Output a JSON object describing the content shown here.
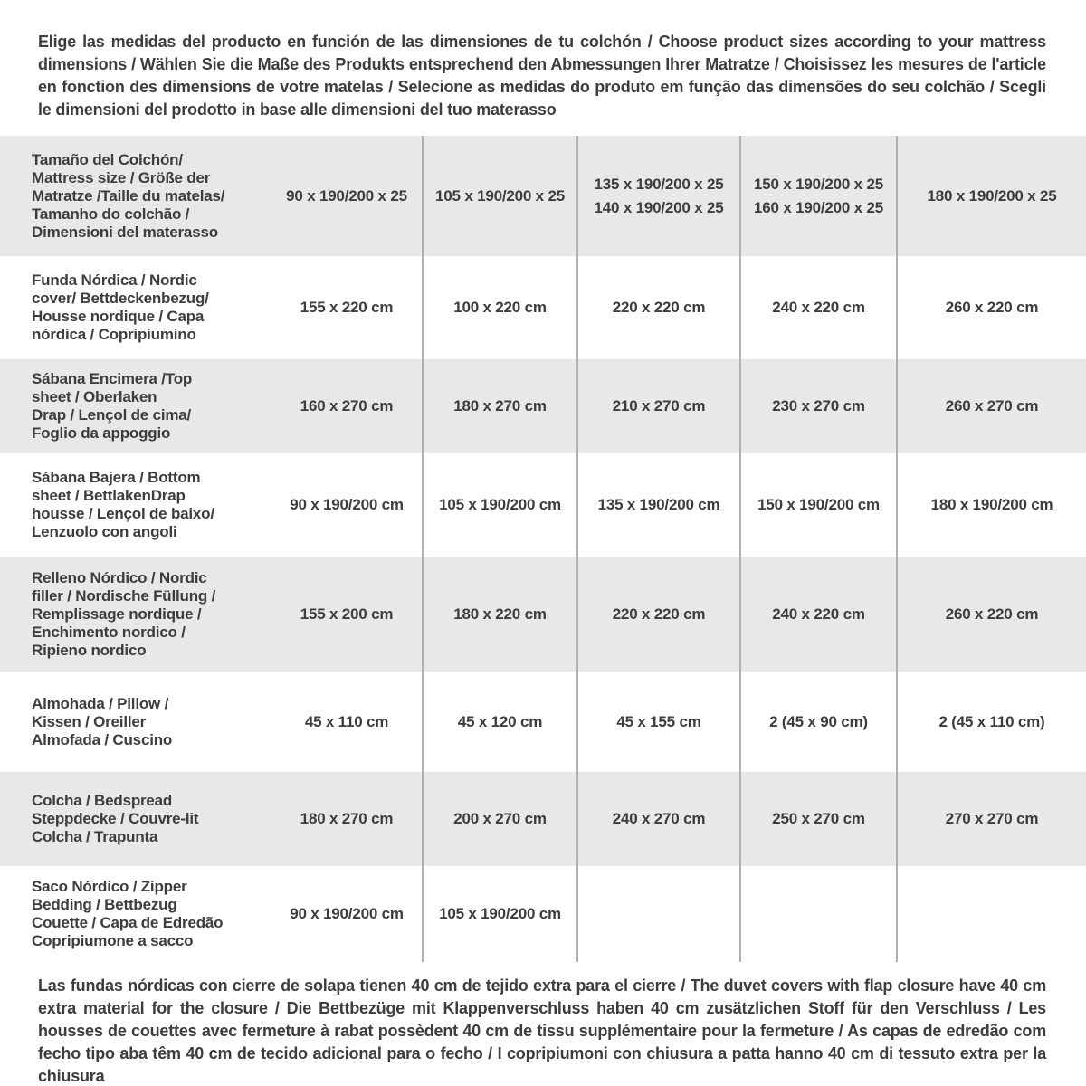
{
  "colors": {
    "row_gray": "#e8e8e8",
    "separator_line": "#b0b0b0",
    "text": "#3d3d3d"
  },
  "intro": "Elige las medidas del producto en función de las dimensiones de tu colchón / Choose product sizes according to your mattress dimensions / Wählen Sie die Maße des Produkts entsprechend den Abmessungen Ihrer Matratze / Choisissez les mesures de l'article en fonction des dimensions de votre matelas / Selecione as medidas do produto em função das dimensões do seu colchão / Scegli le dimensioni del prodotto in base alle dimensioni del tuo materasso",
  "footnote": "Las fundas nórdicas con cierre de solapa tienen 40 cm de tejido extra para el cierre / The duvet covers with flap closure have 40 cm extra material for the closure / Die Bettbezüge mit Klappenverschluss haben 40 cm zusätzlichen Stoff für den Verschluss / Les housses de couettes avec fermeture à rabat possèdent 40 cm de tissu supplémentaire pour la fermeture / As capas de edredão com fecho tipo aba têm 40 cm de tecido adicional para o fecho / I copripiumoni con chiusura a patta hanno 40 cm di tessuto extra per la chiusura",
  "table": {
    "rows": [
      {
        "label": "Tamaño del Colchón/\nMattress size / Größe der\nMatratze /Taille du matelas/\nTamanho do colchão /\nDimensioni del materasso",
        "values": [
          "90 x 190/200 x 25",
          "105 x 190/200 x 25",
          "135 x 190/200 x 25\n140 x 190/200 x 25",
          "150 x 190/200 x 25\n160 x 190/200 x 25",
          "180 x 190/200 x 25"
        ]
      },
      {
        "label": "Funda Nórdica /  Nordic\ncover/ Bettdeckenbezug/\nHousse nordique  / Capa\nnórdica / Copripiumino",
        "values": [
          "155 x 220 cm",
          "100 x 220 cm",
          "220 x 220 cm",
          "240 x 220 cm",
          "260 x 220 cm"
        ]
      },
      {
        "label": "Sábana Encimera /Top\nsheet / Oberlaken\nDrap / Lençol de cima/\nFoglio da appoggio",
        "values": [
          "160 x 270 cm",
          "180 x 270 cm",
          "210 x 270 cm",
          "230 x 270 cm",
          "260 x 270 cm"
        ]
      },
      {
        "label": "Sábana Bajera / Bottom\nsheet / BettlakenDrap\nhousse / Lençol de baixo/\nLenzuolo con angoli",
        "values": [
          "90 x 190/200 cm",
          "105 x 190/200 cm",
          "135 x 190/200 cm",
          "150 x 190/200 cm",
          "180 x 190/200 cm"
        ]
      },
      {
        "label": "Relleno Nórdico / Nordic\nfiller / Nordische Füllung /\nRemplissage nordique /\nEnchimento nordico /\nRipieno nordico",
        "values": [
          "155 x 200 cm",
          "180 x 220 cm",
          "220 x 220 cm",
          "240 x 220 cm",
          "260 x 220 cm"
        ]
      },
      {
        "label": "Almohada  / Pillow /\nKissen / Oreiller\nAlmofada / Cuscino",
        "values": [
          "45 x 110 cm",
          "45 x 120 cm",
          "45 x 155 cm",
          "2 (45 x 90 cm)",
          "2 (45 x 110 cm)"
        ]
      },
      {
        "label": "Colcha / Bedspread\nSteppdecke / Couvre-lit\nColcha / Trapunta",
        "values": [
          "180 x 270 cm",
          "200 x 270 cm",
          "240 x 270 cm",
          "250 x 270 cm",
          "270 x 270 cm"
        ]
      },
      {
        "label": "Saco Nórdico / Zipper\nBedding / Bettbezug\nCouette  / Capa de Edredão\nCopripiumone a sacco",
        "values": [
          "90 x 190/200 cm",
          "105 x 190/200 cm",
          "",
          "",
          ""
        ]
      }
    ]
  }
}
